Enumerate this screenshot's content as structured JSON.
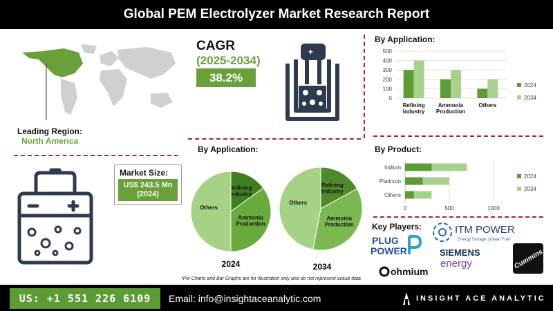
{
  "header": {
    "title": "Global PEM Electrolyzer Market Research Report"
  },
  "region": {
    "label": "Leading Region:",
    "value": "North America"
  },
  "cagr": {
    "label": "CAGR",
    "years": "(2025-2034)",
    "value": "38.2%"
  },
  "market_size": {
    "label": "Market Size:",
    "line1": "US$ 243.5 Mn",
    "line2": "(2024)"
  },
  "pie_section": {
    "title": "By Application:",
    "year_left": "2024",
    "year_right": "2034"
  },
  "bar_app_section": {
    "title": "By Application:"
  },
  "bar_prod_section": {
    "title": "By Product:"
  },
  "key_players": {
    "title": "Key Players:",
    "itm_main": "ITM POWER",
    "itm_sub": "Energy Storage | Clean Fuel",
    "plug_line1": "PLUG",
    "plug_line2": "POWER",
    "siemens_line1": "SIEMENS",
    "siemens_line2": "energy",
    "ohmium": "ohmium",
    "cummins": "Cummins"
  },
  "note": "*Pie Charts and Bar Graphs are for illustration only and do not represent actual data",
  "footer": {
    "phone": "US: +1 551 226 6109",
    "email": "Email: info@insightaceanalytic.com",
    "brand": "INSIGHT ACE ANALYTIC"
  },
  "colors": {
    "dark_green": "#5d9b34",
    "light_green": "#a9d18e",
    "pie_green": "#8cc264",
    "accent_red": "#a3262a",
    "icon_navy": "#2e3b4e"
  },
  "chart_data": [
    {
      "type": "pie",
      "name": "2024",
      "title": "By Application:",
      "labels": [
        "Refining Industry",
        "Ammonia Production",
        "Others"
      ],
      "values": [
        15,
        35,
        50
      ]
    },
    {
      "type": "pie",
      "name": "2034",
      "title": "By Application:",
      "labels": [
        "Refining Industry",
        "Ammonia Production",
        "Others"
      ],
      "values": [
        17,
        36,
        47
      ]
    },
    {
      "type": "bar",
      "title": "By Application:",
      "categories": [
        "Refining Industry",
        "Ammonia Production",
        "Others"
      ],
      "series": [
        {
          "name": "2024",
          "values": [
            300,
            200,
            100
          ]
        },
        {
          "name": "2034",
          "values": [
            400,
            300,
            200
          ]
        }
      ],
      "ylim": [
        0,
        500
      ],
      "yticks": [
        0,
        100,
        200,
        300,
        400,
        500
      ],
      "legend": "right"
    },
    {
      "type": "bar",
      "orientation": "horizontal",
      "title": "By Product:",
      "categories": [
        "Iridium",
        "Platinum",
        "Others"
      ],
      "series": [
        {
          "name": "2024",
          "values": [
            300,
            200,
            100
          ]
        },
        {
          "name": "2034",
          "values": [
            700,
            500,
            300
          ]
        }
      ],
      "xlim": [
        0,
        1000
      ],
      "xticks": [
        0,
        500,
        1000
      ],
      "legend": "right"
    }
  ]
}
